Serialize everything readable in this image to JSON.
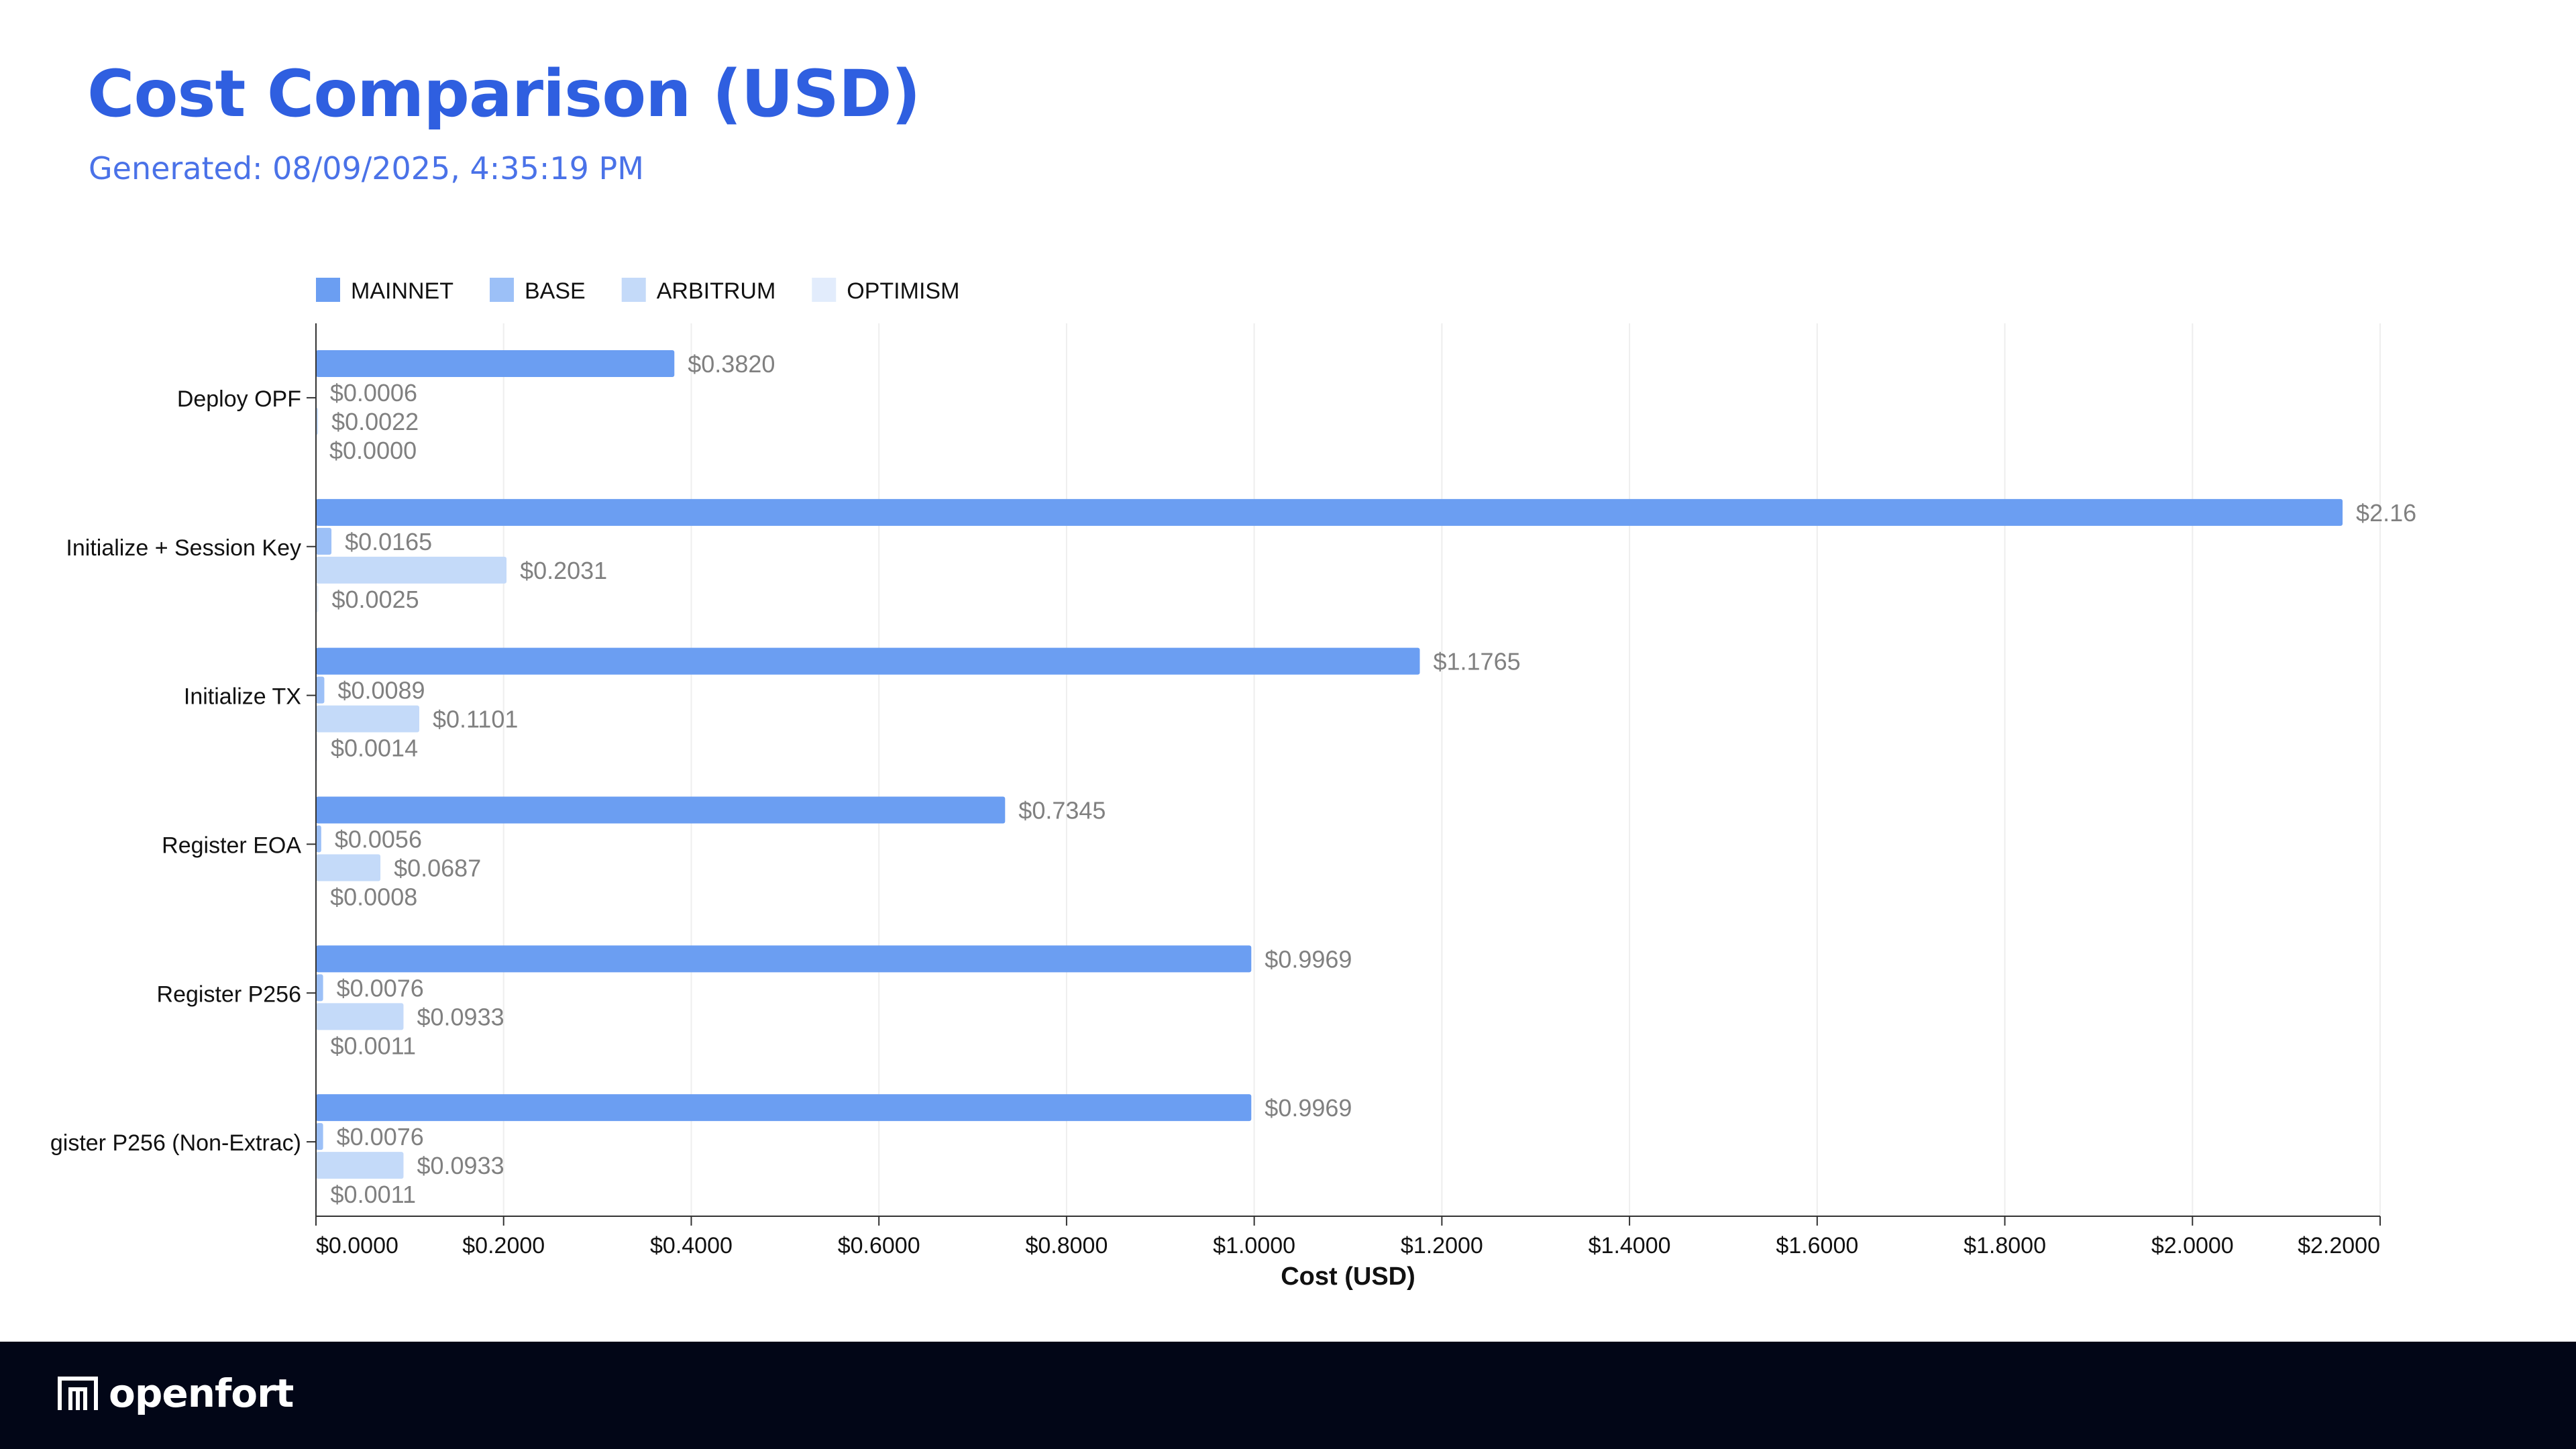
{
  "header": {
    "title": "Cost Comparison (USD)",
    "subtitle": "Generated: 08/09/2025, 4:35:19 PM"
  },
  "footer": {
    "logo_text": "openfort"
  },
  "chart_data": {
    "type": "bar",
    "orientation": "horizontal",
    "categories": [
      "Deploy OPF",
      "Initialize + Session Key",
      "Initialize TX",
      "Register EOA",
      "Register P256",
      "gister P256 (Non-Extrac)"
    ],
    "series": [
      {
        "name": "MAINNET",
        "color": "#6b9ef2",
        "values": [
          0.382,
          2.16,
          1.1765,
          0.7345,
          0.9969,
          0.9969
        ],
        "labels": [
          "$0.3820",
          "$2.16",
          "$1.1765",
          "$0.7345",
          "$0.9969",
          "$0.9969"
        ]
      },
      {
        "name": "BASE",
        "color": "#9cc0f7",
        "values": [
          0.0006,
          0.0165,
          0.0089,
          0.0056,
          0.0076,
          0.0076
        ],
        "labels": [
          "$0.0006",
          "$0.0165",
          "$0.0089",
          "$0.0056",
          "$0.0076",
          "$0.0076"
        ]
      },
      {
        "name": "ARBITRUM",
        "color": "#c4daf9",
        "values": [
          0.0022,
          0.2031,
          0.1101,
          0.0687,
          0.0933,
          0.0933
        ],
        "labels": [
          "$0.0022",
          "$0.2031",
          "$0.1101",
          "$0.0687",
          "$0.0933",
          "$0.0933"
        ]
      },
      {
        "name": "OPTIMISM",
        "color": "#e2ecfc",
        "values": [
          0.0,
          0.0025,
          0.0014,
          0.0008,
          0.0011,
          0.0011
        ],
        "labels": [
          "$0.0000",
          "$0.0025",
          "$0.0014",
          "$0.0008",
          "$0.0011",
          "$0.0011"
        ]
      }
    ],
    "xlabel": "Cost (USD)",
    "xlim": [
      0,
      2.2
    ],
    "xticks": [
      "$0.0000",
      "$0.2000",
      "$0.4000",
      "$0.6000",
      "$0.8000",
      "$1.0000",
      "$1.2000",
      "$1.4000",
      "$1.6000",
      "$1.8000",
      "$2.0000",
      "$2.2000"
    ],
    "grid": true,
    "legend": "top-left"
  }
}
